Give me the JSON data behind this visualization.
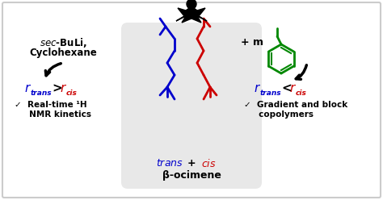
{
  "bg_color": "#f5f5f5",
  "border_color": "#cccccc",
  "title_text": "β-ocimene",
  "trans_label": "trans",
  "cis_label": "cis",
  "left_title": "sec-BuLi,\nCyclohexane",
  "left_rate": "r",
  "left_rate_sub_blue": "trans",
  "left_gt": " > ",
  "left_rate_red": "r",
  "left_rate_sub_red": "cis",
  "left_check1": "✓  Real-time ¹H",
  "left_check2": "     NMR kinetics",
  "right_check1": "✓  Gradient and block",
  "right_check2": "     copolymers",
  "right_rate": "r",
  "right_rate_sub_blue": "trans",
  "right_lt": " < ",
  "right_rate_red": "r",
  "right_rate_sub_red": "cis",
  "plus_m": "+ m",
  "blue_color": "#0000cc",
  "red_color": "#cc0000",
  "green_color": "#008800",
  "black_color": "#000000",
  "box_fill": "#f0f0f0",
  "fig_bg": "#ffffff"
}
